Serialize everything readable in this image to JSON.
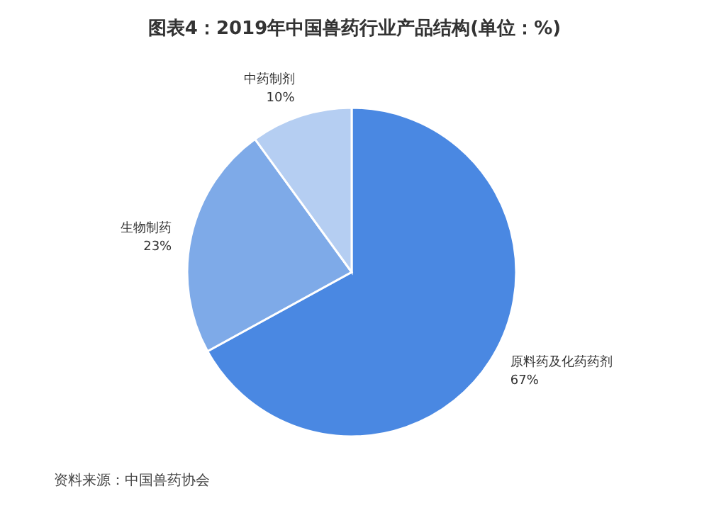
{
  "chart_data": {
    "type": "pie",
    "title": "图表4：2019年中国兽药行业产品结构(单位：%)",
    "categories": [
      "原料药及化药药剂",
      "生物制药",
      "中药制剂"
    ],
    "values": [
      67,
      23,
      10
    ],
    "colors": [
      "#4a88e2",
      "#7eaae8",
      "#b5cef2"
    ],
    "value_labels": [
      "67%",
      "23%",
      "10%"
    ],
    "annotations": [
      "资料来源：中国兽药协会"
    ]
  }
}
